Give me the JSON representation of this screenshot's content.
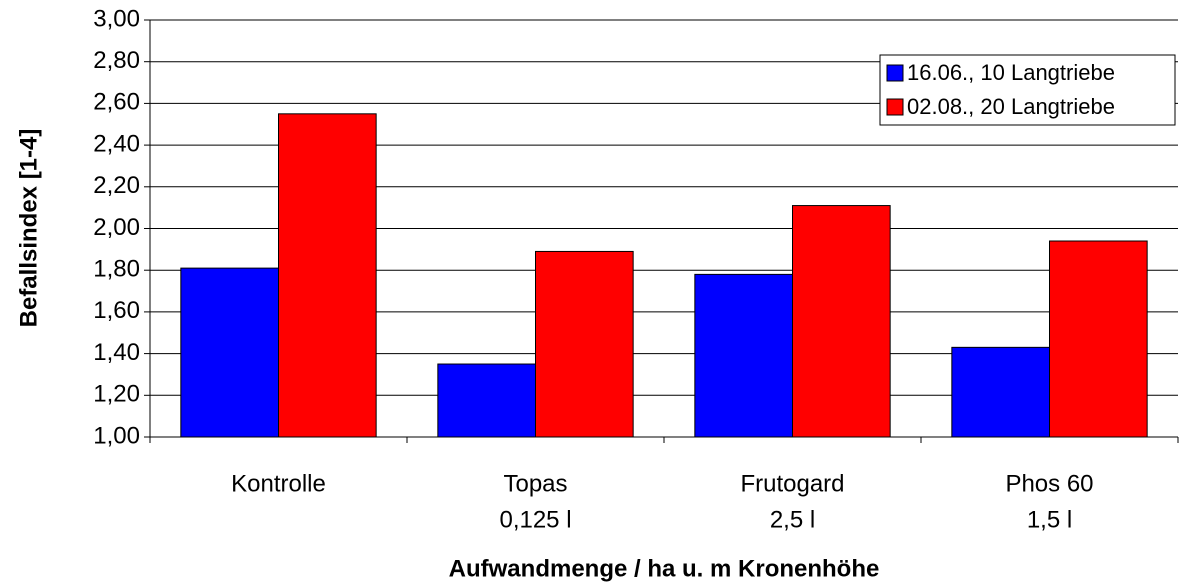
{
  "chart_data": {
    "type": "bar",
    "categories": [
      [
        "Kontrolle"
      ],
      [
        "Topas",
        "0,125 l"
      ],
      [
        "Frutogard",
        "2,5 l"
      ],
      [
        "Phos 60",
        "1,5 l"
      ]
    ],
    "series": [
      {
        "name": "16.06., 10 Langtriebe",
        "color": "#0000ff",
        "values": [
          1.81,
          1.35,
          1.78,
          1.43
        ]
      },
      {
        "name": "02.08., 20 Langtriebe",
        "color": "#ff0000",
        "values": [
          2.55,
          1.89,
          2.11,
          1.94
        ]
      }
    ],
    "ylabel": "Befallsindex [1-4]",
    "xlabel": "Aufwandmenge / ha u. m Kronenhöhe",
    "ylim": [
      1,
      3
    ],
    "yticks": [
      {
        "value": 1,
        "label": "1,00"
      },
      {
        "value": 1.2,
        "label": "1,20"
      },
      {
        "value": 1.4,
        "label": "1,40"
      },
      {
        "value": 1.6,
        "label": "1,60"
      },
      {
        "value": 1.8,
        "label": "1,80"
      },
      {
        "value": 2,
        "label": "2,00"
      },
      {
        "value": 2.2,
        "label": "2,20"
      },
      {
        "value": 2.4,
        "label": "2,40"
      },
      {
        "value": 2.6,
        "label": "2,60"
      },
      {
        "value": 2.8,
        "label": "2,80"
      },
      {
        "value": 3,
        "label": "3,00"
      }
    ],
    "grid": true,
    "legend": "upper right"
  }
}
